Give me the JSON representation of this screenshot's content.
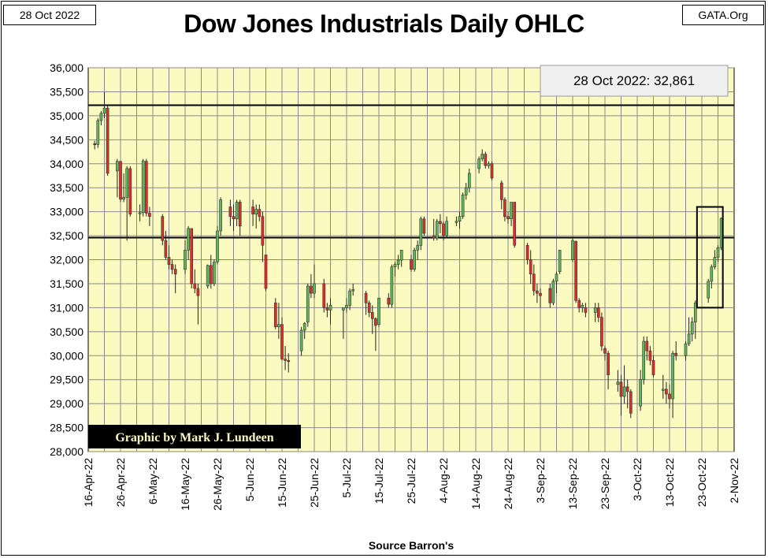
{
  "header": {
    "date_label": "28 Oct 2022",
    "site_label": "GATA.Org",
    "title": "Dow Jones Industrials Daily OHLC"
  },
  "colors": {
    "plot_background": "#fbfac0",
    "grid": "#8a8a8a",
    "up_candle": "#5cb85c",
    "down_candle": "#d9302c",
    "wick": "#222222"
  },
  "chart_data": {
    "type": "candlestick",
    "title": "Dow Jones Industrials Daily OHLC",
    "xlabel": "Source Barron's",
    "ylabel": "",
    "ylim": [
      28000,
      36000
    ],
    "y_ticks": [
      "28,000",
      "28,500",
      "29,000",
      "29,500",
      "30,000",
      "30,500",
      "31,000",
      "31,500",
      "32,000",
      "32,500",
      "33,000",
      "33,500",
      "34,000",
      "34,500",
      "35,000",
      "35,500",
      "36,000"
    ],
    "x_tick_labels": [
      "16-Apr-22",
      "26-Apr-22",
      "6-May-22",
      "16-May-22",
      "26-May-22",
      "5-Jun-22",
      "15-Jun-22",
      "25-Jun-22",
      "5-Jul-22",
      "15-Jul-22",
      "25-Jul-22",
      "4-Aug-22",
      "14-Aug-22",
      "24-Aug-22",
      "3-Sep-22",
      "13-Sep-22",
      "23-Sep-22",
      "3-Oct-22",
      "13-Oct-22",
      "23-Oct-22",
      "2-Nov-22"
    ],
    "grid": true,
    "annotations": {
      "last_close": "28 Oct 2022: 32,861",
      "credit": "Graphic by Mark J. Lundeen"
    },
    "reference_lines": [
      35220,
      32460
    ],
    "highlight_box": {
      "x_from_day": 188.5,
      "x_to_day": 196.5,
      "y_low": 31000,
      "y_high": 33100
    },
    "ohlc_day_offset_note": "day = days after 16-Apr-22",
    "ohlc": [
      [
        2,
        34420,
        34480,
        34300,
        34400
      ],
      [
        3,
        34400,
        34950,
        34330,
        34900
      ],
      [
        4,
        34900,
        35100,
        34800,
        35050
      ],
      [
        5,
        35050,
        35490,
        34950,
        35160
      ],
      [
        6,
        35160,
        35220,
        33750,
        33800
      ],
      [
        9,
        33850,
        34100,
        33300,
        34050
      ],
      [
        10,
        34050,
        34050,
        33200,
        33260
      ],
      [
        11,
        33260,
        33800,
        33200,
        33300
      ],
      [
        12,
        33300,
        33950,
        32400,
        33900
      ],
      [
        13,
        33900,
        33950,
        32900,
        32950
      ],
      [
        16,
        32960,
        33150,
        32800,
        32980
      ],
      [
        17,
        32980,
        34100,
        32900,
        34060
      ],
      [
        18,
        34050,
        34100,
        32900,
        32970
      ],
      [
        19,
        32970,
        33100,
        32700,
        32900
      ],
      [
        23,
        32900,
        32950,
        32300,
        32400
      ],
      [
        24,
        32400,
        32600,
        32000,
        32050
      ],
      [
        25,
        32050,
        32300,
        31800,
        31900
      ],
      [
        26,
        31900,
        32000,
        31700,
        31800
      ],
      [
        27,
        31800,
        31900,
        31300,
        31700
      ],
      [
        30,
        31800,
        32400,
        31700,
        32200
      ],
      [
        31,
        32200,
        32700,
        32000,
        32650
      ],
      [
        32,
        32650,
        32650,
        31400,
        31500
      ],
      [
        33,
        31500,
        31800,
        31300,
        31400
      ],
      [
        34,
        31400,
        31500,
        30650,
        31250
      ],
      [
        37,
        31450,
        31900,
        31400,
        31880
      ],
      [
        38,
        31880,
        32100,
        31400,
        31500
      ],
      [
        39,
        31500,
        32000,
        31450,
        31950
      ],
      [
        40,
        31950,
        32700,
        31900,
        32600
      ],
      [
        41,
        32600,
        33300,
        32500,
        33250
      ],
      [
        44,
        33100,
        33250,
        32700,
        32900
      ],
      [
        45,
        32900,
        33150,
        32600,
        32850
      ],
      [
        46,
        32850,
        33250,
        32700,
        33200
      ],
      [
        47,
        33200,
        33250,
        32500,
        32700
      ],
      [
        51,
        33100,
        33250,
        32700,
        32950
      ],
      [
        52,
        32950,
        33150,
        32650,
        33050
      ],
      [
        53,
        33050,
        33150,
        32800,
        32900
      ],
      [
        54,
        32900,
        33000,
        31950,
        32300
      ],
      [
        55,
        32100,
        32100,
        31350,
        31400
      ],
      [
        58,
        31100,
        31200,
        30550,
        30600
      ],
      [
        59,
        30600,
        31100,
        30350,
        30650
      ],
      [
        60,
        30650,
        30800,
        29900,
        29930
      ],
      [
        61,
        29930,
        30200,
        29700,
        29900
      ],
      [
        62,
        29900,
        30050,
        29650,
        29890
      ],
      [
        66,
        30100,
        30600,
        30000,
        30530
      ],
      [
        67,
        30530,
        30700,
        30350,
        30670
      ],
      [
        68,
        30700,
        31500,
        30600,
        31450
      ],
      [
        69,
        31450,
        31700,
        31200,
        31300
      ],
      [
        70,
        31300,
        31900,
        31200,
        31500
      ],
      [
        73,
        31500,
        31600,
        30900,
        31000
      ],
      [
        74,
        31000,
        31100,
        30800,
        30950
      ],
      [
        75,
        30950,
        31200,
        30650,
        31050
      ],
      [
        79,
        30950,
        31000,
        30350,
        31000
      ],
      [
        80,
        31000,
        31200,
        30900,
        31050
      ],
      [
        81,
        31050,
        31400,
        30950,
        31350
      ],
      [
        82,
        31350,
        31500,
        31250,
        31380
      ],
      [
        86,
        31300,
        31350,
        30850,
        31100
      ],
      [
        87,
        31100,
        31150,
        30800,
        30900
      ],
      [
        88,
        30900,
        31050,
        30450,
        30770
      ],
      [
        89,
        30770,
        30800,
        30100,
        30630
      ],
      [
        90,
        30650,
        31200,
        30600,
        31200
      ],
      [
        93,
        31200,
        31300,
        31000,
        31070
      ],
      [
        94,
        31070,
        31900,
        31000,
        31850
      ],
      [
        95,
        31850,
        31950,
        31650,
        31900
      ],
      [
        96,
        31900,
        32100,
        31800,
        31990
      ],
      [
        97,
        31990,
        32200,
        31850,
        32200
      ],
      [
        100,
        32000,
        32100,
        31750,
        31800
      ],
      [
        101,
        31800,
        32250,
        31750,
        32200
      ],
      [
        102,
        32200,
        32400,
        32000,
        32300
      ],
      [
        103,
        32300,
        32900,
        32200,
        32850
      ],
      [
        104,
        32850,
        32900,
        32500,
        32550
      ],
      [
        107,
        32500,
        32850,
        32400,
        32450
      ],
      [
        108,
        32450,
        32850,
        32400,
        32800
      ],
      [
        109,
        32800,
        32950,
        32550,
        32750
      ],
      [
        110,
        32750,
        32800,
        32400,
        32500
      ],
      [
        111,
        32500,
        32900,
        32450,
        32800
      ],
      [
        114,
        32800,
        32900,
        32700,
        32800
      ],
      [
        115,
        32800,
        33000,
        32650,
        32900
      ],
      [
        116,
        32900,
        33400,
        32850,
        33350
      ],
      [
        117,
        33350,
        33600,
        33250,
        33500
      ],
      [
        118,
        33500,
        33900,
        33400,
        33800
      ],
      [
        121,
        33900,
        34150,
        33800,
        34100
      ],
      [
        122,
        34100,
        34300,
        34050,
        34200
      ],
      [
        123,
        34200,
        34250,
        33900,
        33960
      ],
      [
        124,
        33960,
        34050,
        33900,
        34000
      ],
      [
        125,
        34000,
        34050,
        33650,
        33700
      ],
      [
        128,
        33600,
        33650,
        33050,
        33250
      ],
      [
        129,
        33250,
        33300,
        32800,
        32900
      ],
      [
        130,
        32900,
        33000,
        32750,
        32850
      ],
      [
        131,
        32850,
        33200,
        32700,
        33200
      ],
      [
        132,
        33200,
        33200,
        32250,
        32300
      ],
      [
        136,
        32300,
        32350,
        31900,
        32000
      ],
      [
        137,
        32000,
        32200,
        31500,
        31700
      ],
      [
        138,
        31700,
        31900,
        31250,
        31350
      ],
      [
        139,
        31350,
        31500,
        31100,
        31300
      ],
      [
        140,
        31300,
        31400,
        31000,
        31250
      ],
      [
        143,
        31400,
        31500,
        31000,
        31100
      ],
      [
        144,
        31100,
        31600,
        31050,
        31550
      ],
      [
        145,
        31550,
        31750,
        31300,
        31700
      ],
      [
        146,
        31750,
        32200,
        31700,
        32200
      ],
      [
        150,
        32000,
        32450,
        31950,
        32400
      ],
      [
        151,
        32380,
        32400,
        31100,
        31150
      ],
      [
        152,
        31150,
        31200,
        30900,
        31000
      ],
      [
        153,
        31000,
        31100,
        30900,
        31050
      ],
      [
        154,
        31000,
        31100,
        30800,
        30900
      ],
      [
        157,
        30900,
        31100,
        30700,
        31000
      ],
      [
        158,
        31000,
        31100,
        30700,
        30800
      ],
      [
        159,
        30800,
        30900,
        30100,
        30200
      ],
      [
        160,
        30150,
        30200,
        29900,
        30050
      ],
      [
        161,
        30050,
        30100,
        29300,
        29600
      ],
      [
        164,
        29400,
        29700,
        29250,
        29450
      ],
      [
        165,
        29450,
        29600,
        28750,
        29150
      ],
      [
        166,
        29150,
        29800,
        29000,
        29350
      ],
      [
        167,
        29350,
        29500,
        28900,
        29250
      ],
      [
        168,
        29250,
        29300,
        28700,
        28800
      ],
      [
        171,
        28950,
        29700,
        28850,
        29500
      ],
      [
        172,
        29500,
        30400,
        29400,
        30300
      ],
      [
        173,
        30300,
        30400,
        29900,
        30100
      ],
      [
        174,
        30100,
        30200,
        29800,
        29900
      ],
      [
        175,
        29900,
        30000,
        29550,
        29600
      ],
      [
        178,
        29300,
        29600,
        29100,
        29300
      ],
      [
        179,
        29300,
        29450,
        29000,
        29200
      ],
      [
        180,
        29200,
        29400,
        28900,
        29100
      ],
      [
        181,
        29100,
        30100,
        28700,
        30050
      ],
      [
        182,
        30050,
        30300,
        29900,
        30000
      ],
      [
        185,
        30000,
        30300,
        29900,
        30250
      ],
      [
        186,
        30250,
        30800,
        30200,
        30450
      ],
      [
        187,
        30450,
        30800,
        30300,
        30700
      ],
      [
        188,
        30700,
        31150,
        30350,
        31100
      ],
      [
        192,
        31200,
        31600,
        31100,
        31550
      ],
      [
        193,
        31550,
        31900,
        31400,
        31850
      ],
      [
        194,
        31850,
        32200,
        31800,
        32050
      ],
      [
        195,
        32050,
        32300,
        31950,
        32250
      ],
      [
        196,
        32250,
        32880,
        32200,
        32861
      ]
    ]
  }
}
